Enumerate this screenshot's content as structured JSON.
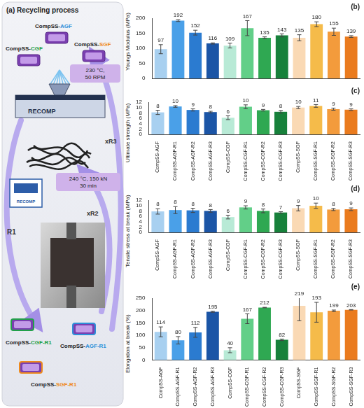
{
  "panel_a": {
    "title": "(a) Recycling process",
    "inputs": [
      {
        "label": "CompSS-AGF",
        "color": "#2e8fd8"
      },
      {
        "label": "CompSS-CGF",
        "color": "#22a04a"
      },
      {
        "label": "CompSS-SGF",
        "color": "#ee8a1e"
      }
    ],
    "extrusion": {
      "conditions": [
        "230 °C,",
        "50 RPM"
      ],
      "label": "RECOMP"
    },
    "pressing": {
      "conditions": [
        "240 °C, 150 kN",
        "30 min"
      ],
      "label": "RECOMP"
    },
    "cycles": [
      "R1",
      "xR2",
      "xR3"
    ],
    "outputs": [
      {
        "label": "CompSS-CGF-R1",
        "color": "#22a04a"
      },
      {
        "label": "CompSS-AGF-R1",
        "color": "#2e8fd8"
      },
      {
        "label": "CompSS-SGF-R1",
        "color": "#ee8a1e"
      }
    ]
  },
  "chart_data": [
    {
      "type": "bar",
      "title": "(b)",
      "y_label": "Youngs Modulus (MPa)",
      "categories": [
        "CompSS-AGF",
        "CompSS-AGF-R1",
        "CompSS-AGF-R2",
        "CompSS-AGF-R3",
        "CompSS-CGF",
        "CompSS-CGF-R1",
        "CompSS-CGF-R2",
        "CompSS-CGF-R3",
        "CompSS-SGF",
        "CompSS-SGF-R1",
        "CompSS-SGF-R2",
        "CompSS-SGF-R3"
      ],
      "values": [
        97,
        192,
        152,
        116,
        109,
        167,
        135,
        143,
        135,
        180,
        155,
        139
      ],
      "errors": [
        15,
        3,
        8,
        2,
        8,
        25,
        3,
        5,
        10,
        8,
        12,
        3
      ],
      "colors": [
        "#a8d0f0",
        "#4aa0e8",
        "#2b7bd0",
        "#1b55a6",
        "#b8ead6",
        "#62cf88",
        "#2fa852",
        "#17813b",
        "#fad9b4",
        "#f5bb4a",
        "#f39b3c",
        "#ea7b1e"
      ],
      "ylim": [
        0,
        200
      ],
      "yticks": [
        0,
        50,
        100,
        150,
        200
      ],
      "grid": false,
      "data_labels": true,
      "tick_labels": "y"
    },
    {
      "type": "bar",
      "title": "(c)",
      "y_label": "Ultimate strength (MPa)",
      "categories": [
        "CompSS-AGF",
        "CompSS-AGF-R1",
        "CompSS-AGF-R2",
        "CompSS-AGF-R3",
        "CompSS-CGF",
        "CompSS-CGF-R1",
        "CompSS-CGF-R2",
        "CompSS-CGF-R3",
        "CompSS-SGF",
        "CompSS-SGF-R1",
        "CompSS-SGF-R2",
        "CompSS-SGF-R3"
      ],
      "values": [
        8.2,
        10.4,
        9.1,
        8.3,
        6.2,
        10.3,
        9.0,
        8.4,
        10.0,
        10.6,
        9.4,
        9.2
      ],
      "value_labels": [
        "8",
        "10",
        "9",
        "8",
        "6",
        "10",
        "9",
        "8",
        "10",
        "11",
        "9",
        "9"
      ],
      "errors": [
        0.8,
        0.3,
        0.4,
        0.3,
        0.7,
        0.7,
        0.3,
        0.5,
        0.4,
        0.5,
        0.4,
        0.3
      ],
      "colors": [
        "#a8d0f0",
        "#4aa0e8",
        "#2b7bd0",
        "#1b55a6",
        "#b8ead6",
        "#62cf88",
        "#2fa852",
        "#17813b",
        "#fad9b4",
        "#f5bb4a",
        "#f39b3c",
        "#ea7b1e"
      ],
      "ylim": [
        0,
        12
      ],
      "yticks": [
        0,
        2,
        4,
        6,
        8,
        10,
        12
      ],
      "grid": false,
      "data_labels": true
    },
    {
      "type": "bar",
      "title": "(d)",
      "y_label": "Tensile stress at break (MPa)",
      "categories": [
        "CompSS-AGF",
        "CompSS-AGF-R1",
        "CompSS-AGF-R2",
        "CompSS-AGF-R3",
        "CompSS-CGF",
        "CompSS-CGF-R1",
        "CompSS-CGF-R2",
        "CompSS-CGF-R3",
        "CompSS-SGF",
        "CompSS-SGF-R1",
        "CompSS-SGF-R2",
        "CompSS-SGF-R3"
      ],
      "values": [
        7.8,
        8.3,
        8.2,
        8.0,
        5.7,
        9.3,
        8.0,
        7.4,
        9.0,
        9.9,
        8.5,
        8.6
      ],
      "value_labels": [
        "8",
        "8",
        "8",
        "8",
        "6",
        "9",
        "8",
        "7",
        "9",
        "10",
        "8",
        "9"
      ],
      "errors": [
        1.0,
        1.3,
        0.8,
        0.5,
        0.7,
        0.6,
        0.7,
        0.3,
        1.0,
        1.0,
        0.4,
        0.5
      ],
      "colors": [
        "#a8d0f0",
        "#4aa0e8",
        "#2b7bd0",
        "#1b55a6",
        "#b8ead6",
        "#62cf88",
        "#2fa852",
        "#17813b",
        "#fad9b4",
        "#f5bb4a",
        "#f39b3c",
        "#ea7b1e"
      ],
      "ylim": [
        0,
        12
      ],
      "yticks": [
        0,
        2,
        4,
        6,
        8,
        10,
        12
      ],
      "grid": false,
      "data_labels": true
    },
    {
      "type": "bar",
      "title": "(e)",
      "y_label": "Elongation at break (%)",
      "categories": [
        "CompSS-AGF",
        "CompSS-AGF-R1",
        "CompSS-AGF-R2",
        "CompSS-AGF-R3",
        "CompSS-CGF",
        "CompSS-CGF-R1",
        "CompSS-CGF-R2",
        "CompSS-CGF-R3",
        "CompSS-SGF",
        "CompSS-SGF-R1",
        "CompSS-SGF-R2",
        "CompSS-SGF-R3"
      ],
      "values": [
        114,
        80,
        112,
        195,
        40,
        167,
        212,
        82,
        219,
        193,
        199,
        203
      ],
      "errors": [
        20,
        15,
        20,
        2,
        10,
        20,
        1,
        3,
        60,
        40,
        3,
        1
      ],
      "colors": [
        "#a8d0f0",
        "#4aa0e8",
        "#2b7bd0",
        "#1b55a6",
        "#b8ead6",
        "#62cf88",
        "#2fa852",
        "#17813b",
        "#fad9b4",
        "#f5bb4a",
        "#f39b3c",
        "#ea7b1e"
      ],
      "ylim": [
        0,
        250
      ],
      "yticks": [
        0,
        50,
        100,
        150,
        200,
        250
      ],
      "grid": false,
      "data_labels": true
    }
  ]
}
